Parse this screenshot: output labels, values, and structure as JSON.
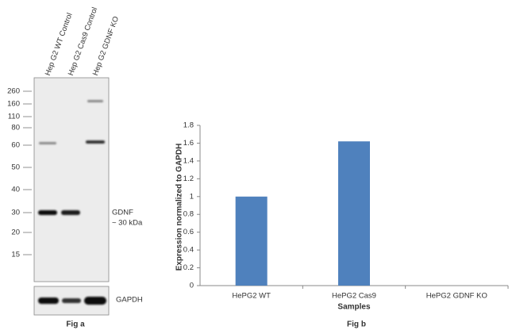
{
  "blot": {
    "lanes": [
      "Hep G2 WT Control",
      "Hep G2 Cas9 Control",
      "Hep G2 GDNF KO"
    ],
    "markers": [
      "260",
      "160",
      "110",
      "80",
      "60",
      "50",
      "40",
      "30",
      "20",
      "15"
    ],
    "band_label": "GDNF",
    "band_size": "~ 30 kDa",
    "loading_control": "GAPDH",
    "caption": "Fig a"
  },
  "chart_data": {
    "type": "bar",
    "categories": [
      "HePG2 WT",
      "HePG2 Cas9",
      "HePG2 GDNF KO"
    ],
    "values": [
      1,
      1.62,
      0
    ],
    "color": "#4f81bd",
    "ylim": [
      0,
      1.8
    ],
    "yticks": [
      0,
      0.2,
      0.4,
      0.6,
      0.8,
      1,
      1.2,
      1.4,
      1.6,
      1.8
    ],
    "y_label": "Expression  normalized to GAPDH",
    "x_label": "Samples",
    "caption": "Fig b"
  }
}
